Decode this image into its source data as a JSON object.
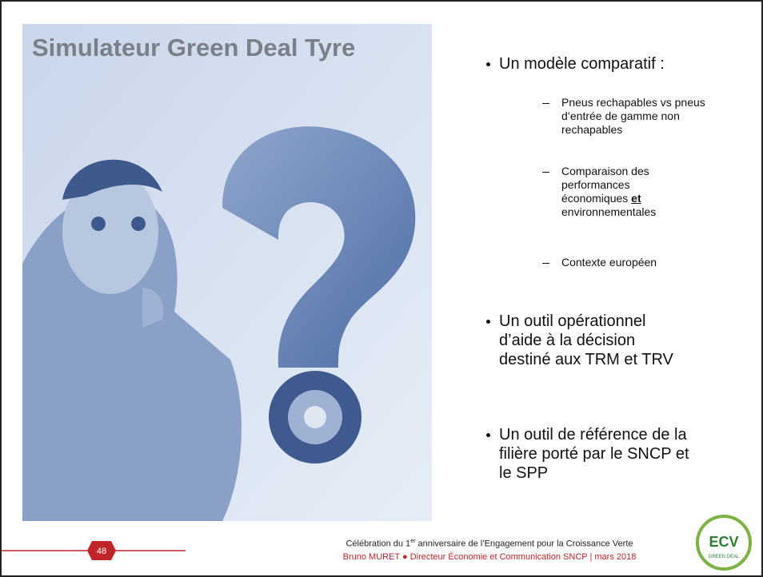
{
  "title": "Simulateur Green Deal Tyre",
  "bullets": [
    {
      "text": "Un modèle comparatif :",
      "subitems": [
        [
          "Pneus rechapables vs pneus d’entrée de gamme non rechapables"
        ],
        [
          "Comparaison des performances économiques ",
          "et",
          " environnementales"
        ],
        [
          "Contexte européen"
        ]
      ]
    },
    {
      "text": "Un outil opérationnel d’aide à la décision destiné aux TRM et TRV"
    },
    {
      "text": "Un outil  de référence de la filière porté par le SNCP et le SPP"
    }
  ],
  "footer": {
    "page": "48",
    "line1": [
      "Célébration du 1",
      "er",
      " anniversaire de l’Engagement pour la Croissance Verte"
    ],
    "line2": "Bruno MURET ● Directeur Économie et Communication SNCP | mars 2018"
  },
  "logo": {
    "text": "ECV",
    "subtext": "GREEN DEAL"
  }
}
